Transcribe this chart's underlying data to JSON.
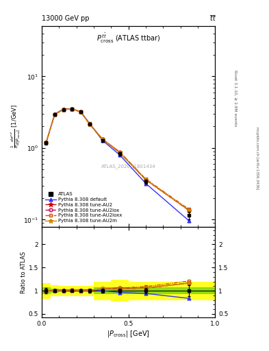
{
  "title_top": "13000 GeV pp",
  "title_top_right": "t̅t̅",
  "plot_title": "$P^{\\,t\\bar{t}}_{\\mathrm{cross}}$ (ATLAS ttbar)",
  "ylabel_main": "$\\frac{1}{\\sigma}\\frac{d\\sigma^{nd}}{d|P_{\\mathrm{cross}}|}$ [1/GeV]",
  "ylabel_ratio": "Ratio to ATLAS",
  "xlabel": "$|P_{\\mathrm{cross}}|$ [GeV]",
  "watermark": "ATLAS_2020_I1801434",
  "right_label": "mcplots.cern.ch [arXiv:1306.3436]",
  "rivet_label": "Rivet 3.1.10, ≥ 2.8M events",
  "x_data": [
    0.025,
    0.075,
    0.125,
    0.175,
    0.225,
    0.275,
    0.35,
    0.45,
    0.6,
    0.85
  ],
  "atlas_y": [
    1.18,
    2.95,
    3.45,
    3.48,
    3.18,
    2.18,
    1.28,
    0.83,
    0.34,
    0.115
  ],
  "atlas_yerr": [
    0.07,
    0.1,
    0.11,
    0.1,
    0.09,
    0.08,
    0.06,
    0.04,
    0.022,
    0.013
  ],
  "pythia_default_y": [
    1.18,
    2.98,
    3.5,
    3.52,
    3.22,
    2.22,
    1.28,
    0.8,
    0.32,
    0.096
  ],
  "pythia_au2_y": [
    1.18,
    2.95,
    3.45,
    3.52,
    3.18,
    2.18,
    1.33,
    0.88,
    0.36,
    0.134
  ],
  "pythia_au2lox_y": [
    1.18,
    2.95,
    3.45,
    3.52,
    3.18,
    2.18,
    1.33,
    0.86,
    0.36,
    0.134
  ],
  "pythia_au2loxx_y": [
    1.18,
    2.95,
    3.45,
    3.52,
    3.2,
    2.2,
    1.34,
    0.88,
    0.37,
    0.139
  ],
  "pythia_au2m_y": [
    1.18,
    2.95,
    3.45,
    3.52,
    3.18,
    2.18,
    1.33,
    0.86,
    0.36,
    0.134
  ],
  "ratio_atlas_yerr": [
    0.06,
    0.034,
    0.032,
    0.029,
    0.028,
    0.037,
    0.047,
    0.048,
    0.065,
    0.113
  ],
  "ratio_default_y": [
    1.0,
    1.01,
    1.014,
    1.011,
    1.013,
    1.018,
    1.0,
    0.964,
    0.941,
    0.835
  ],
  "ratio_au2_y": [
    1.0,
    1.0,
    1.0,
    1.011,
    1.0,
    1.0,
    1.039,
    1.06,
    1.059,
    1.165
  ],
  "ratio_au2lox_y": [
    1.0,
    1.0,
    1.0,
    1.011,
    1.0,
    1.0,
    1.039,
    1.036,
    1.059,
    1.165
  ],
  "ratio_au2loxx_y": [
    1.0,
    1.0,
    1.0,
    1.011,
    1.006,
    1.009,
    1.047,
    1.06,
    1.088,
    1.209
  ],
  "ratio_au2m_y": [
    1.0,
    1.0,
    1.0,
    1.011,
    1.0,
    1.0,
    1.039,
    1.036,
    1.059,
    1.165
  ],
  "colors": {
    "atlas": "#000000",
    "pythia_default": "#3333ff",
    "pythia_au2": "#cc0000",
    "pythia_au2lox": "#cc0055",
    "pythia_au2loxx": "#cc5500",
    "pythia_au2m": "#cc8800"
  },
  "ylim_main": [
    0.08,
    50
  ],
  "ylim_ratio": [
    0.42,
    2.38
  ],
  "xlim": [
    0.0,
    1.0
  ],
  "bg_color": "#ffffff"
}
